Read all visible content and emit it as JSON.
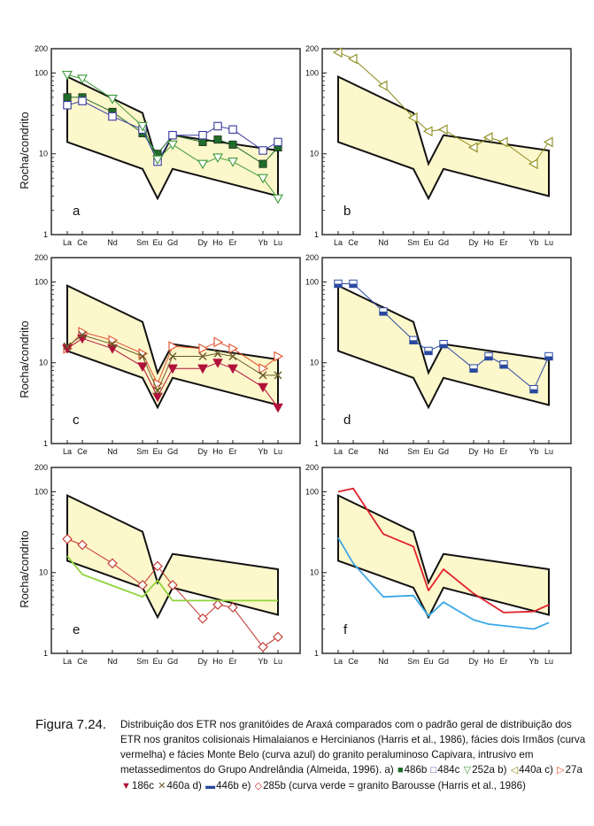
{
  "chart_data": [
    {
      "type": "line",
      "panel_label": "a",
      "ylabel": "Rocha/condrito",
      "yscale": "log",
      "ylim": [
        1,
        200
      ],
      "yticks": [
        "1",
        "10",
        "100",
        "200"
      ],
      "xticks": [
        "La",
        "Ce",
        "Nd",
        "Sm",
        "Eu",
        "Gd",
        "Dy",
        "Ho",
        "Er",
        "Yb",
        "Lu"
      ],
      "series": [
        {
          "name": "486b",
          "marker": "square-filled",
          "color": "#1f6b2a",
          "x": [
            "La",
            "Ce",
            "Nd",
            "Sm",
            "Eu",
            "Gd",
            "Dy",
            "Ho",
            "Er",
            "Yb",
            "Lu"
          ],
          "values": [
            50,
            50,
            33,
            18,
            10,
            17,
            14,
            15,
            13,
            7.5,
            12
          ]
        },
        {
          "name": "484c",
          "marker": "square-open",
          "color": "#3a3aa0",
          "x": [
            "La",
            "Ce",
            "Nd",
            "Sm",
            "Eu",
            "Gd",
            "Dy",
            "Ho",
            "Er",
            "Yb",
            "Lu"
          ],
          "values": [
            40,
            45,
            29,
            20,
            8,
            17,
            17,
            22,
            20,
            11,
            14
          ]
        },
        {
          "name": "252a",
          "marker": "triangle-down-open",
          "color": "#3f9a3a",
          "x": [
            "La",
            "Ce",
            "Nd",
            "Sm",
            "Eu",
            "Gd",
            "Dy",
            "Ho",
            "Er",
            "Yb",
            "Lu"
          ],
          "values": [
            95,
            85,
            48,
            22,
            8.5,
            13,
            7.5,
            9,
            8,
            5,
            2.8
          ]
        }
      ]
    },
    {
      "type": "line",
      "panel_label": "b",
      "ylabel": "",
      "yscale": "log",
      "ylim": [
        1,
        200
      ],
      "yticks": [
        "1",
        "10",
        "100",
        "200"
      ],
      "xticks": [
        "La",
        "Ce",
        "Nd",
        "Sm",
        "Eu",
        "Gd",
        "Dy",
        "Ho",
        "Er",
        "Yb",
        "Lu"
      ],
      "series": [
        {
          "name": "440a",
          "marker": "triangle-left-open",
          "color": "#8a8a1a",
          "x": [
            "La",
            "Ce",
            "Nd",
            "Sm",
            "Eu",
            "Gd",
            "Dy",
            "Ho",
            "Er",
            "Yb",
            "Lu"
          ],
          "values": [
            180,
            150,
            70,
            28,
            19,
            20,
            12,
            16,
            14,
            7.5,
            14
          ]
        }
      ]
    },
    {
      "type": "line",
      "panel_label": "c",
      "ylabel": "Rocha/condrito",
      "yscale": "log",
      "ylim": [
        1,
        200
      ],
      "yticks": [
        "1",
        "10",
        "100",
        "200"
      ],
      "xticks": [
        "La",
        "Ce",
        "Nd",
        "Sm",
        "Eu",
        "Gd",
        "Dy",
        "Ho",
        "Er",
        "Yb",
        "Lu"
      ],
      "series": [
        {
          "name": "27a",
          "marker": "triangle-right-open",
          "color": "#e0502a",
          "x": [
            "La",
            "Ce",
            "Nd",
            "Sm",
            "Eu",
            "Gd",
            "Dy",
            "Ho",
            "Er",
            "Yb",
            "Lu"
          ],
          "values": [
            15,
            24,
            19,
            13,
            5.5,
            16,
            15,
            18,
            15,
            8.5,
            12
          ]
        },
        {
          "name": "186c",
          "marker": "triangle-down-filled",
          "color": "#b0103a",
          "x": [
            "La",
            "Ce",
            "Nd",
            "Sm",
            "Eu",
            "Gd",
            "Dy",
            "Ho",
            "Er",
            "Yb",
            "Lu"
          ],
          "values": [
            15,
            20,
            15,
            9,
            3.8,
            8.5,
            8.5,
            10,
            8.5,
            5,
            2.8
          ]
        },
        {
          "name": "460a",
          "marker": "cross",
          "color": "#6a5a2a",
          "x": [
            "La",
            "Ce",
            "Nd",
            "Sm",
            "Eu",
            "Gd",
            "Dy",
            "Ho",
            "Er",
            "Yb",
            "Lu"
          ],
          "values": [
            16,
            22,
            17,
            12,
            4.5,
            12,
            12,
            13,
            12,
            7,
            7
          ]
        }
      ]
    },
    {
      "type": "line",
      "panel_label": "d",
      "ylabel": "",
      "yscale": "log",
      "ylim": [
        1,
        200
      ],
      "yticks": [
        "1",
        "10",
        "100",
        "200"
      ],
      "xticks": [
        "La",
        "Ce",
        "Nd",
        "Sm",
        "Eu",
        "Gd",
        "Dy",
        "Ho",
        "Er",
        "Yb",
        "Lu"
      ],
      "series": [
        {
          "name": "446b",
          "marker": "square-half",
          "color": "#2a4aa0",
          "x": [
            "La",
            "Ce",
            "Nd",
            "Sm",
            "Eu",
            "Gd",
            "Dy",
            "Ho",
            "Er",
            "Yb",
            "Lu"
          ],
          "values": [
            95,
            95,
            43,
            19,
            14,
            17,
            8.5,
            12,
            9.5,
            4.7,
            12
          ]
        }
      ]
    },
    {
      "type": "line",
      "panel_label": "e",
      "ylabel": "Rocha/condrito",
      "yscale": "log",
      "ylim": [
        1,
        200
      ],
      "yticks": [
        "1",
        "10",
        "100",
        "200"
      ],
      "xticks": [
        "La",
        "Ce",
        "Nd",
        "Sm",
        "Eu",
        "Gd",
        "Dy",
        "Ho",
        "Er",
        "Yb",
        "Lu"
      ],
      "series": [
        {
          "name": "285b",
          "marker": "diamond-open",
          "color": "#c0302a",
          "x": [
            "La",
            "Ce",
            "Nd",
            "Sm",
            "Eu",
            "Gd",
            "Dy",
            "Ho",
            "Er",
            "Yb",
            "Lu"
          ],
          "values": [
            26,
            22,
            13,
            7,
            12,
            7,
            2.7,
            4,
            3.7,
            1.2,
            1.6
          ]
        },
        {
          "name": "granito Barousse",
          "marker": "none",
          "color": "#8fd43a",
          "x": [
            "La",
            "Ce",
            "Sm",
            "Eu",
            "Gd",
            "Lu"
          ],
          "values": [
            16,
            9.5,
            5,
            8,
            4.5,
            4.5
          ]
        }
      ]
    },
    {
      "type": "line",
      "panel_label": "f",
      "ylabel": "",
      "yscale": "log",
      "ylim": [
        1,
        200
      ],
      "yticks": [
        "1",
        "10",
        "100",
        "200"
      ],
      "xticks": [
        "La",
        "Ce",
        "Nd",
        "Sm",
        "Eu",
        "Gd",
        "Dy",
        "Ho",
        "Er",
        "Yb",
        "Lu"
      ],
      "series": [
        {
          "name": "fácies dois Irmãos",
          "marker": "none",
          "color": "#e0202a",
          "x": [
            "La",
            "Ce",
            "Nd",
            "Sm",
            "Eu",
            "Gd",
            "Dy",
            "Er",
            "Yb",
            "Lu"
          ],
          "values": [
            100,
            110,
            30,
            21,
            6,
            11,
            5.5,
            3.2,
            3.3,
            4
          ]
        },
        {
          "name": "fácies Monte Belo",
          "marker": "none",
          "color": "#3aa8e8",
          "x": [
            "La",
            "Ce",
            "Nd",
            "Sm",
            "Eu",
            "Gd",
            "Dy",
            "Ho",
            "Yb",
            "Lu"
          ],
          "values": [
            27,
            13,
            5,
            5.2,
            2.9,
            4.3,
            2.6,
            2.3,
            2,
            2.4
          ]
        }
      ]
    }
  ],
  "envelope": {
    "fill": "#fdf7cc",
    "x": [
      "La",
      "Sm",
      "Eu",
      "Gd",
      "Lu"
    ],
    "upper": [
      90,
      32,
      7.5,
      17,
      11
    ],
    "lower": [
      14,
      6.5,
      2.8,
      6.5,
      3
    ]
  },
  "caption": {
    "figure_label": "Figura 7.24.",
    "text_1": "Distribuição dos ETR nos granitóides de Araxá comparados com o padrão geral de distribuição dos ETR nos granitos colisionais Himalaianos e Hercinianos (Harris et al., 1986), fácies dois Irmãos (curva vermelha) e fácies Monte Belo (curva azul) do granito peraluminoso Capivara, intrusivo em metassedimentos do Grupo Andrelândia (Almeida, 1996). a)",
    "a1": "486b",
    "a2": "484c",
    "a3": "252a",
    "b_label": "b)",
    "b1": "440a",
    "c_label": "c)",
    "c1": "27a",
    "c2": "186c",
    "c3": "460a",
    "d_label": "d)",
    "d1": "446b",
    "e_label": "e)",
    "e1": "285b",
    "e_note": "(curva verde = granito Barousse (Harris et al., 1986)"
  }
}
